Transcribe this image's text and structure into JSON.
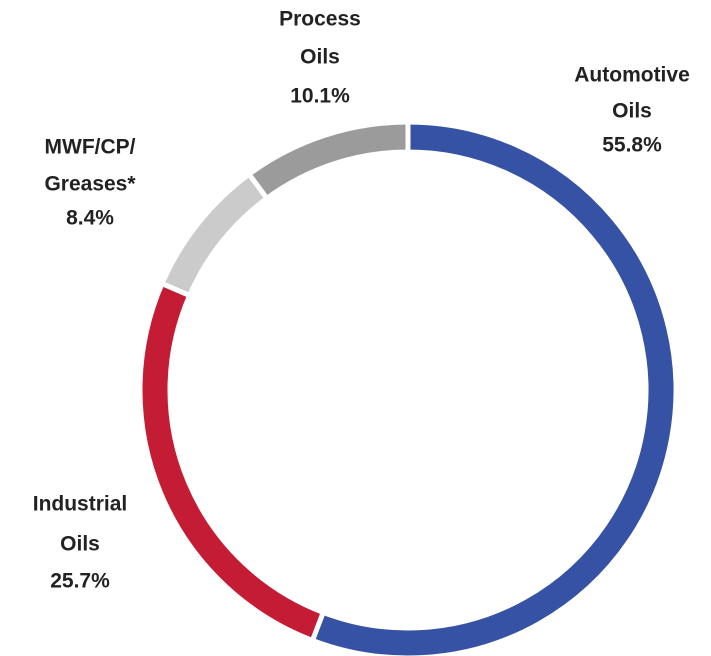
{
  "chart_data": {
    "type": "donut",
    "categories": [
      [
        "Automotive",
        "Oils"
      ],
      [
        "Industrial",
        "Oils"
      ],
      [
        "MWF/CP/",
        "Greases*"
      ],
      [
        "Process",
        "Oils"
      ]
    ],
    "values": [
      55.8,
      25.7,
      8.4,
      10.1
    ],
    "value_labels": [
      "55.8%",
      "25.7%",
      "8.4%",
      "10.1%"
    ],
    "colors": [
      "#3552a4",
      "#c41c34",
      "#cbcbcb",
      "#9b9b9b"
    ]
  }
}
